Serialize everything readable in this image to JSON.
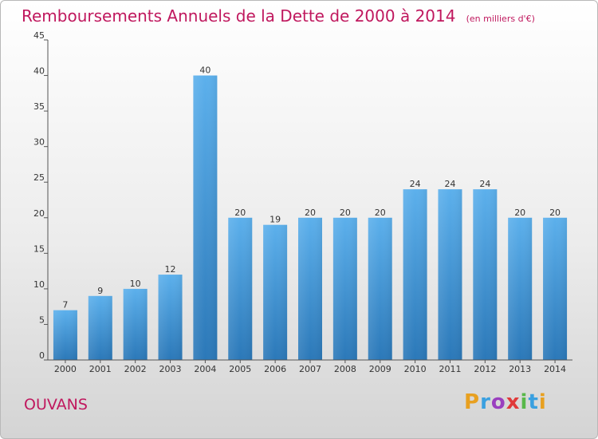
{
  "chart_data": {
    "type": "bar",
    "title": "Remboursements Annuels de la Dette de 2000 à 2014",
    "subtitle": "(en milliers d'€)",
    "xlabel": "",
    "ylabel": "",
    "categories": [
      "2000",
      "2001",
      "2002",
      "2003",
      "2004",
      "2005",
      "2006",
      "2007",
      "2008",
      "2009",
      "2010",
      "2011",
      "2012",
      "2013",
      "2014"
    ],
    "values": [
      7,
      9,
      10,
      12,
      40,
      20,
      19,
      20,
      20,
      20,
      24,
      24,
      24,
      20,
      20
    ],
    "ylim": [
      0,
      45
    ],
    "yticks": [
      0,
      5,
      10,
      15,
      20,
      25,
      30,
      35,
      40,
      45
    ],
    "grid": false,
    "bar_color": "#4a9fe0"
  },
  "footer": {
    "town": "OUVANS",
    "logo_letters": [
      "P",
      "r",
      "o",
      "x",
      "i",
      "t",
      "i"
    ],
    "logo_colors": [
      "#e8a020",
      "#3aa0e0",
      "#9a3fbf",
      "#e03a3a",
      "#59b84a",
      "#3aa0e0",
      "#e8a020"
    ]
  }
}
